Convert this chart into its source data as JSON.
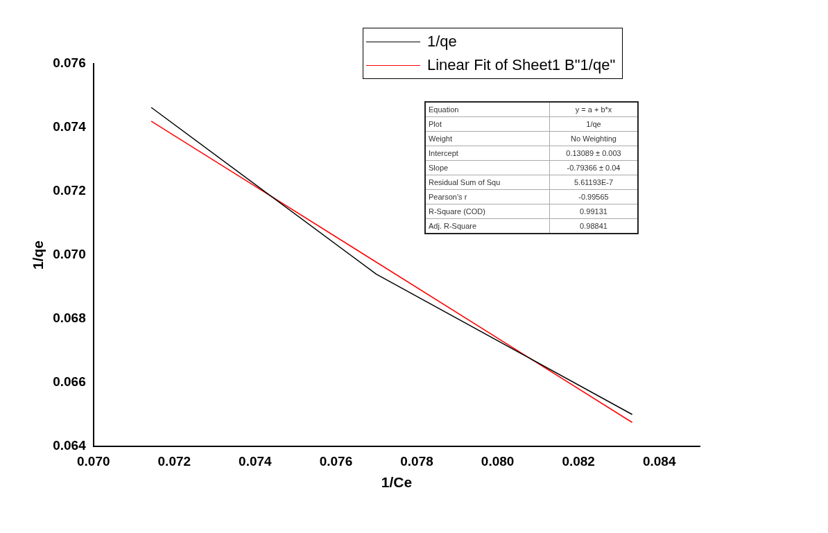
{
  "chart_data": {
    "type": "line",
    "xlabel": "1/Ce",
    "ylabel": "1/qe",
    "xlim": [
      0.07,
      0.085
    ],
    "xticks": [
      {
        "value": 0.07,
        "label": "0.070"
      },
      0.072,
      0.074,
      0.076,
      0.078,
      {
        "value": 0.08,
        "label": "0.080"
      },
      0.082,
      0.084
    ],
    "ylim": [
      0.064,
      0.076
    ],
    "yticks": [
      0.064,
      0.066,
      0.068,
      {
        "value": 0.07,
        "label": "0.070"
      },
      0.072,
      0.074,
      0.076
    ],
    "series": [
      {
        "name": "1/qe",
        "color": "#000000",
        "x": [
          0.07143,
          0.077,
          0.08333
        ],
        "values": [
          0.07463,
          0.0694,
          0.065
        ]
      },
      {
        "name": "Linear Fit of Sheet1 B\"1/qe\"",
        "color": "#ff0000",
        "x": [
          0.07143,
          0.08333
        ],
        "values": [
          0.0742,
          0.06475
        ]
      }
    ],
    "legend": "top right",
    "marker": "none",
    "line_style": "solid",
    "annotations": [
      "Equation",
      "y = a + b*x",
      "Plot",
      "1/qe",
      "Weight",
      "No Weighting",
      "Intercept",
      "0.13089 ± 0.003",
      "Slope",
      "-0.79366 ± 0.04",
      "Residual Sum of Squ",
      "5.61193E-7",
      "Pearson's r",
      "-0.99565",
      "R-Square (COD)",
      "0.99131",
      "Adj. R-Square",
      "0.98841"
    ]
  }
}
